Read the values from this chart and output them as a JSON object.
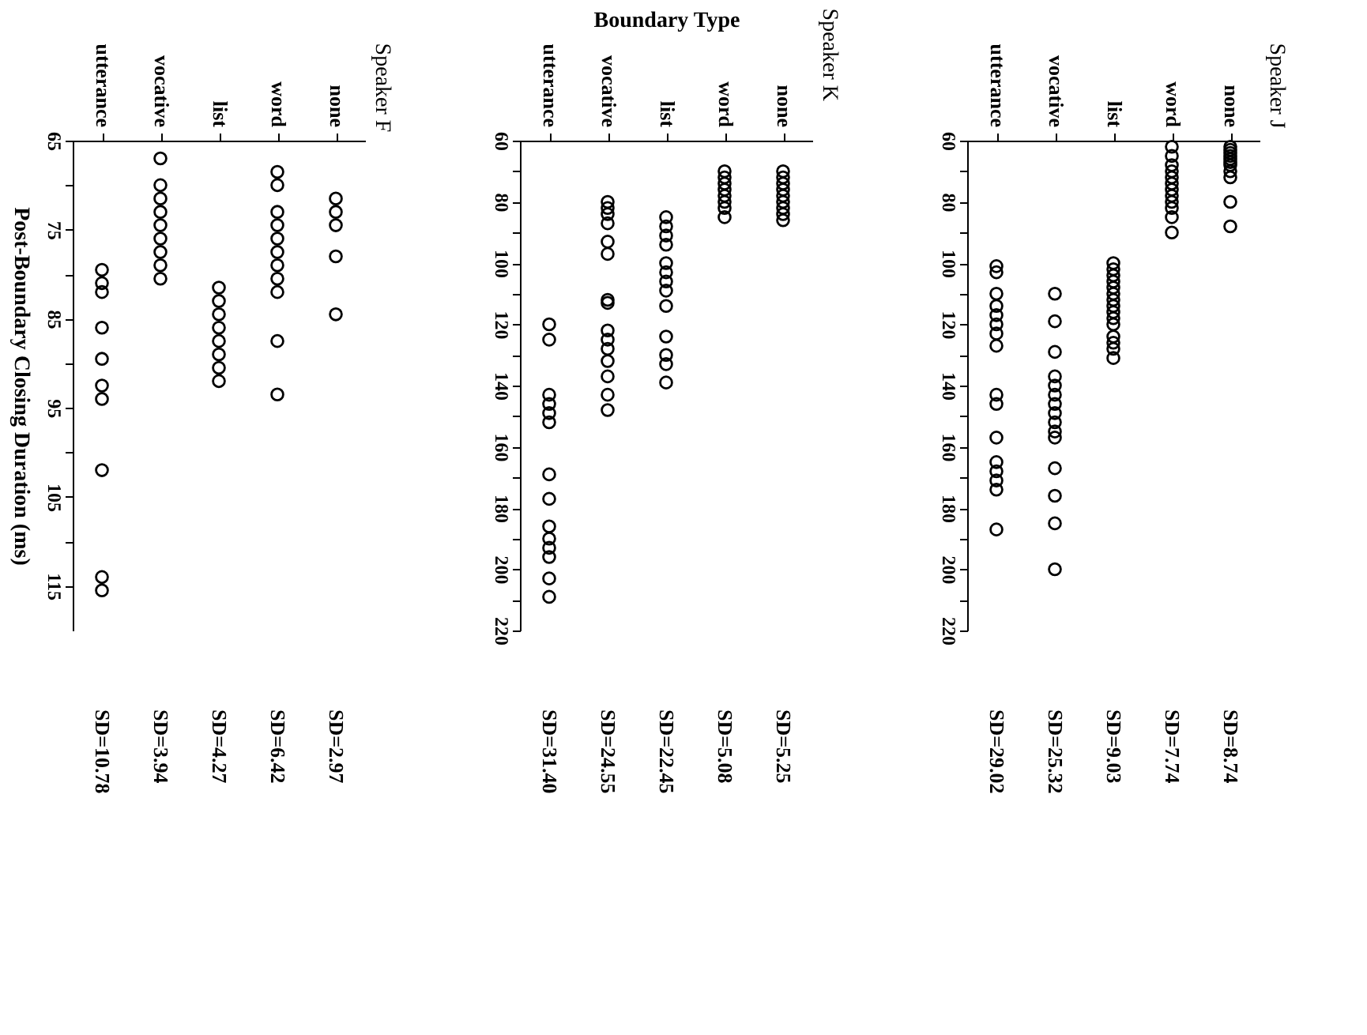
{
  "chart_data": [
    {
      "type": "scatter",
      "title": "Speaker F",
      "ylabel": "Post-Boundary Closing Duration (ms)",
      "categories": [
        "utterance",
        "vocative",
        "list",
        "word",
        "none"
      ],
      "ylim": [
        120,
        65
      ],
      "yticks": [
        65,
        {
          "value": 70,
          "label": null
        },
        75,
        {
          "value": 80,
          "label": null
        },
        85,
        {
          "value": 90,
          "label": null
        },
        95,
        {
          "value": 100,
          "label": null
        },
        105,
        {
          "value": 110,
          "label": null
        },
        115
      ],
      "grid": false,
      "legend": false,
      "marker": "circle",
      "series": [
        {
          "color": "#000000",
          "x": [
            "utterance",
            "utterance",
            "utterance",
            "utterance",
            "utterance",
            "utterance",
            "utterance",
            "utterance",
            "utterance",
            "utterance",
            "vocative",
            "vocative",
            "vocative",
            "vocative",
            "vocative",
            "vocative",
            "vocative",
            "vocative",
            "vocative",
            "list",
            "list",
            "list",
            "list",
            "list",
            "list",
            "list",
            "list",
            "word",
            "word",
            "word",
            "word",
            "word",
            "word",
            "word",
            "word",
            "word",
            "word",
            "word",
            "none",
            "none",
            "none",
            "none",
            "none"
          ],
          "values": [
            79.5,
            81,
            82,
            86,
            89.5,
            92.5,
            94,
            102,
            114,
            115.5,
            67,
            70,
            71.5,
            73,
            74.5,
            76,
            77.5,
            79,
            80.5,
            81.5,
            83,
            84.5,
            86,
            87.5,
            89,
            90.5,
            92,
            68.5,
            70,
            73,
            74.5,
            76,
            77.5,
            79,
            80.5,
            82,
            87.5,
            93.5,
            71.5,
            73,
            74.5,
            78,
            84.5
          ]
        }
      ],
      "annotations": [
        "SD=10.78",
        "SD=3.94",
        "SD=4.27",
        "SD=6.42",
        "SD=2.97"
      ]
    },
    {
      "type": "scatter",
      "title": "Speaker K",
      "xlabel": "Boundary Type",
      "categories": [
        "utterance",
        "vocative",
        "list",
        "word",
        "none"
      ],
      "ylim": [
        220,
        60
      ],
      "yticks": [
        60,
        {
          "value": 70,
          "label": null
        },
        80,
        {
          "value": 90,
          "label": null
        },
        100,
        {
          "value": 110,
          "label": null
        },
        120,
        {
          "value": 130,
          "label": null
        },
        140,
        {
          "value": 150,
          "label": null
        },
        160,
        {
          "value": 170,
          "label": null
        },
        180,
        {
          "value": 190,
          "label": null
        },
        200,
        {
          "value": 210,
          "label": null
        },
        220
      ],
      "grid": false,
      "legend": false,
      "marker": "circle",
      "series": [
        {
          "color": "#000000",
          "x": [
            "utterance",
            "utterance",
            "utterance",
            "utterance",
            "utterance",
            "utterance",
            "utterance",
            "utterance",
            "utterance",
            "utterance",
            "utterance",
            "utterance",
            "utterance",
            "utterance",
            "vocative",
            "vocative",
            "vocative",
            "vocative",
            "vocative",
            "vocative",
            "vocative",
            "vocative",
            "vocative",
            "vocative",
            "vocative",
            "vocative",
            "vocative",
            "vocative",
            "vocative",
            "list",
            "list",
            "list",
            "list",
            "list",
            "list",
            "list",
            "list",
            "list",
            "list",
            "list",
            "list",
            "list",
            "word",
            "word",
            "word",
            "word",
            "word",
            "word",
            "word",
            "word",
            "none",
            "none",
            "none",
            "none",
            "none",
            "none",
            "none",
            "none",
            "none"
          ],
          "values": [
            120,
            125,
            143,
            146,
            149,
            152,
            169,
            177,
            186,
            190,
            193,
            196,
            203,
            209,
            80,
            82,
            84,
            87,
            93,
            97,
            112,
            113,
            122,
            125,
            128,
            132,
            137,
            143,
            148,
            85,
            88,
            91,
            94,
            100,
            103,
            106,
            109,
            114,
            124,
            130,
            133,
            139,
            70,
            72,
            74,
            76,
            78,
            80,
            82,
            85,
            70,
            72,
            74,
            76,
            78,
            80,
            82,
            84,
            86
          ]
        }
      ],
      "annotations": [
        "SD=31.40",
        "SD=24.55",
        "SD=22.45",
        "SD=5.08",
        "SD=5.25"
      ]
    },
    {
      "type": "scatter",
      "title": "Speaker J",
      "categories": [
        "utterance",
        "vocative",
        "list",
        "word",
        "none"
      ],
      "ylim": [
        220,
        60
      ],
      "yticks": [
        60,
        {
          "value": 70,
          "label": null
        },
        80,
        {
          "value": 90,
          "label": null
        },
        100,
        {
          "value": 110,
          "label": null
        },
        120,
        {
          "value": 130,
          "label": null
        },
        140,
        {
          "value": 150,
          "label": null
        },
        160,
        {
          "value": 170,
          "label": null
        },
        180,
        {
          "value": 190,
          "label": null
        },
        200,
        {
          "value": 210,
          "label": null
        },
        220
      ],
      "grid": false,
      "legend": false,
      "marker": "circle",
      "series": [
        {
          "color": "#000000",
          "x": [
            "utterance",
            "utterance",
            "utterance",
            "utterance",
            "utterance",
            "utterance",
            "utterance",
            "utterance",
            "utterance",
            "utterance",
            "utterance",
            "utterance",
            "utterance",
            "utterance",
            "utterance",
            "utterance",
            "vocative",
            "vocative",
            "vocative",
            "vocative",
            "vocative",
            "vocative",
            "vocative",
            "vocative",
            "vocative",
            "vocative",
            "vocative",
            "vocative",
            "vocative",
            "vocative",
            "vocative",
            "list",
            "list",
            "list",
            "list",
            "list",
            "list",
            "list",
            "list",
            "list",
            "list",
            "list",
            "list",
            "list",
            "list",
            "list",
            "word",
            "word",
            "word",
            "word",
            "word",
            "word",
            "word",
            "word",
            "word",
            "word",
            "word",
            "word",
            "none",
            "none",
            "none",
            "none",
            "none",
            "none",
            "none",
            "none",
            "none",
            "none",
            "none"
          ],
          "values": [
            101,
            103,
            110,
            114,
            117,
            120,
            123,
            127,
            143,
            146,
            157,
            165,
            168,
            171,
            174,
            187,
            110,
            119,
            129,
            137,
            140,
            143,
            146,
            149,
            152,
            155,
            157,
            167,
            176,
            185,
            200,
            100,
            102,
            104,
            106,
            108,
            110,
            112,
            114,
            116,
            118,
            120,
            124,
            126,
            128,
            131,
            62,
            65,
            68,
            70,
            72,
            74,
            76,
            78,
            80,
            82,
            85,
            90,
            62,
            63,
            64,
            65,
            66,
            67,
            68,
            70,
            72,
            80,
            88
          ]
        }
      ],
      "annotations": [
        "SD=29.02",
        "SD=25.32",
        "SD=9.03",
        "SD=7.74",
        "SD=8.74"
      ]
    }
  ]
}
